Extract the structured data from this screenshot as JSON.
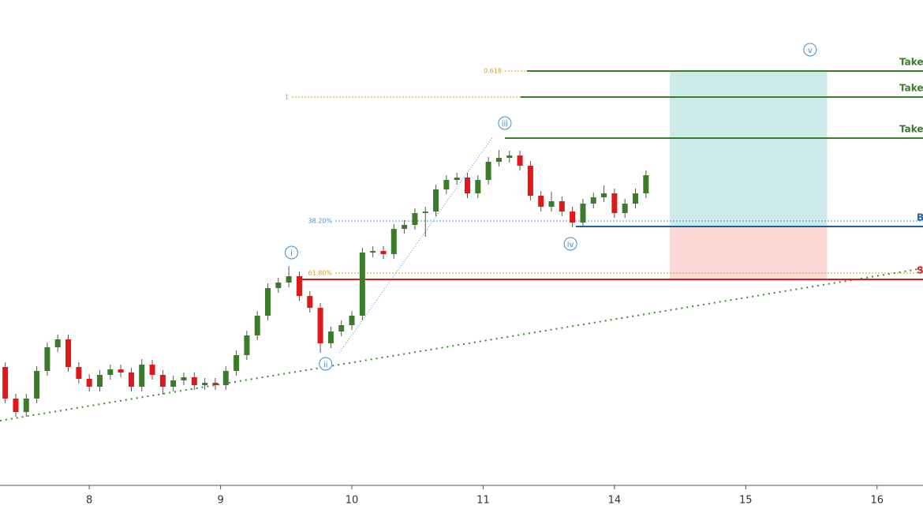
{
  "chart_data": {
    "type": "candlestick",
    "xlim": [
      -0.68,
      6.35
    ],
    "ylim": [
      0,
      615
    ],
    "xticks": [
      {
        "value": 0,
        "label": "8"
      },
      {
        "value": 1,
        "label": "9"
      },
      {
        "value": 2,
        "label": "10"
      },
      {
        "value": 3,
        "label": "11"
      },
      {
        "value": 4,
        "label": "14"
      },
      {
        "value": 5,
        "label": "15"
      },
      {
        "value": 6,
        "label": "16"
      }
    ],
    "up_color": "#3c7a2c",
    "down_color": "#e0171b",
    "wick_color": "#555555",
    "x": [
      -0.64,
      -0.56,
      -0.48,
      -0.4,
      -0.32,
      -0.24,
      -0.16,
      -0.08,
      0,
      0.08,
      0.16,
      0.24,
      0.32,
      0.4,
      0.48,
      0.56,
      0.64,
      0.72,
      0.8,
      0.88,
      0.96,
      1.04,
      1.12,
      1.2,
      1.28,
      1.36,
      1.44,
      1.52,
      1.6,
      1.68,
      1.76,
      1.84,
      1.92,
      2,
      2.08,
      2.16,
      2.24,
      2.32,
      2.4,
      2.48,
      2.56,
      2.64,
      2.72,
      2.8,
      2.88,
      2.96,
      3.04,
      3.12,
      3.2,
      3.28,
      3.36,
      3.44,
      3.52,
      3.6,
      3.68,
      3.76,
      3.84,
      3.92,
      4,
      4.08,
      4.16,
      4.24
    ],
    "open": [
      150,
      110,
      93,
      110,
      145,
      175,
      185,
      150,
      135,
      125,
      140,
      147,
      143,
      125,
      153,
      140,
      125,
      133,
      137,
      127,
      130,
      127,
      145,
      165,
      190,
      215,
      250,
      257,
      265,
      240,
      225,
      180,
      195,
      203,
      215,
      295,
      297,
      293,
      325,
      330,
      345,
      347,
      375,
      387,
      390,
      370,
      387,
      410,
      415,
      418,
      405,
      367,
      353,
      360,
      347,
      333,
      357,
      365,
      370,
      345,
      357,
      370
    ],
    "high": [
      156,
      116,
      116,
      151,
      181,
      191,
      191,
      156,
      141,
      146,
      153,
      153,
      149,
      160,
      159,
      146,
      139,
      143,
      143,
      136,
      136,
      151,
      171,
      196,
      221,
      256,
      263,
      278,
      271,
      246,
      231,
      201,
      209,
      221,
      301,
      303,
      303,
      331,
      336,
      351,
      353,
      381,
      393,
      396,
      396,
      393,
      416,
      425,
      424,
      424,
      411,
      373,
      372,
      366,
      353,
      363,
      371,
      380,
      376,
      363,
      376,
      399
    ],
    "low": [
      104,
      87,
      87,
      104,
      139,
      169,
      144,
      129,
      119,
      119,
      134,
      137,
      119,
      119,
      134,
      115,
      119,
      127,
      121,
      121,
      121,
      121,
      139,
      159,
      184,
      209,
      244,
      251,
      234,
      219,
      168,
      174,
      189,
      197,
      209,
      289,
      287,
      287,
      319,
      324,
      315,
      341,
      369,
      381,
      364,
      364,
      381,
      404,
      409,
      399,
      361,
      347,
      347,
      341,
      327,
      327,
      351,
      359,
      339,
      339,
      351,
      364
    ],
    "close": [
      110,
      93,
      110,
      145,
      175,
      185,
      150,
      135,
      125,
      140,
      147,
      143,
      125,
      153,
      140,
      125,
      133,
      137,
      127,
      130,
      127,
      145,
      165,
      190,
      215,
      250,
      257,
      265,
      240,
      225,
      180,
      195,
      203,
      215,
      295,
      297,
      293,
      325,
      330,
      345,
      347,
      375,
      387,
      390,
      370,
      387,
      410,
      415,
      418,
      405,
      367,
      353,
      360,
      347,
      333,
      357,
      365,
      370,
      345,
      357,
      370,
      393
    ],
    "levels": [
      {
        "label": "Take",
        "value": 525,
        "start": 3.333,
        "color": "#3c7a2c"
      },
      {
        "label": "Take",
        "value": 492,
        "start": 3.285,
        "color": "#3c7a2c"
      },
      {
        "label": "Take",
        "value": 440,
        "start": 3.165,
        "color": "#3c7a2c"
      },
      {
        "label": "B",
        "value": 328,
        "start": 3.706,
        "color": "#1f5fa8"
      },
      {
        "label": "S",
        "value": 261,
        "start": 1.604,
        "color": "#e0171b"
      }
    ],
    "fib_levels": [
      {
        "label": "0.618",
        "value": 525,
        "start": 3.165,
        "color": "#d99a1c"
      },
      {
        "label": "1",
        "value": 492,
        "start": 1.544,
        "color": "#d99a1c"
      },
      {
        "label": "38.20%",
        "value": 335,
        "start": 1.874,
        "color": "#4a8fd6"
      },
      {
        "label": "61.80%",
        "value": 269,
        "start": 1.874,
        "color": "#d99a1c"
      }
    ],
    "position": {
      "x": [
        4.42,
        5.62
      ],
      "target": 525,
      "entry": 328,
      "stop": 261,
      "profit_color": "#cdebe8",
      "loss_color": "#fbd8d6"
    },
    "trendline": {
      "x": [
        -0.68,
        6.35
      ],
      "values": [
        82,
        275
      ],
      "color": "#3c8a2c"
    },
    "fib_line": {
      "x": [
        1.904,
        3.075
      ],
      "values": [
        168,
        442
      ],
      "color": "#4a8fd6"
    },
    "waves": [
      {
        "label": "i",
        "x": 1.54,
        "value": 295
      },
      {
        "label": "ii",
        "x": 1.8,
        "value": 154
      },
      {
        "label": "iii",
        "x": 3.165,
        "value": 459
      },
      {
        "label": "iv",
        "x": 3.665,
        "value": 306
      },
      {
        "label": "v",
        "x": 5.49,
        "value": 552
      }
    ],
    "wave_color": "#3d8fd1"
  }
}
